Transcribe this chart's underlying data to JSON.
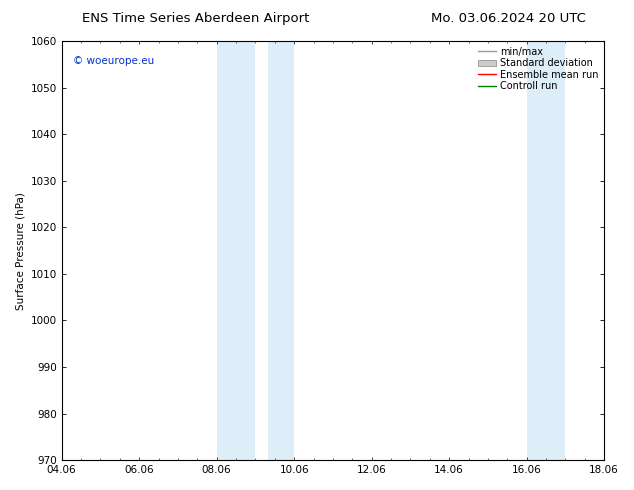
{
  "title_left": "ENS Time Series Aberdeen Airport",
  "title_right": "Mo. 03.06.2024 20 UTC",
  "ylabel": "Surface Pressure (hPa)",
  "ylim": [
    970,
    1060
  ],
  "yticks": [
    970,
    980,
    990,
    1000,
    1010,
    1020,
    1030,
    1040,
    1050,
    1060
  ],
  "xlim_num": [
    0,
    14
  ],
  "xtick_labels": [
    "04.06",
    "06.06",
    "08.06",
    "10.06",
    "12.06",
    "14.06",
    "16.06",
    "18.06"
  ],
  "xtick_positions": [
    0,
    2,
    4,
    6,
    8,
    10,
    12,
    14
  ],
  "shaded_bands": [
    {
      "xmin": 4.0,
      "xmax": 5.0
    },
    {
      "xmin": 5.33,
      "xmax": 6.0
    },
    {
      "xmin": 12.0,
      "xmax": 13.0
    }
  ],
  "shade_color": "#ddeef8",
  "watermark": "© woeurope.eu",
  "watermark_color": "#0033cc",
  "legend_items": [
    {
      "label": "min/max",
      "color": "#999999",
      "type": "line"
    },
    {
      "label": "Standard deviation",
      "color": "#cccccc",
      "type": "box"
    },
    {
      "label": "Ensemble mean run",
      "color": "#ff0000",
      "type": "line"
    },
    {
      "label": "Controll run",
      "color": "#008000",
      "type": "line"
    }
  ],
  "bg_color": "#ffffff",
  "font_size": 7.5,
  "title_font_size": 9.5
}
